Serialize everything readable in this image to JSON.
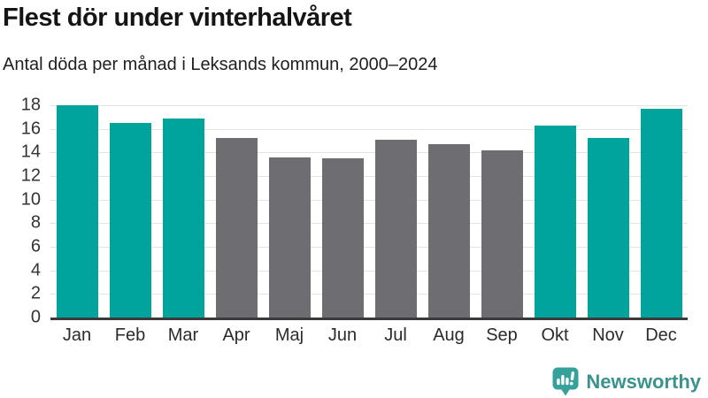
{
  "header": {
    "title": "Flest dör under vinterhalvåret",
    "subtitle": "Antal döda per månad i Leksands kommun, 2000–2024"
  },
  "chart_data": {
    "type": "bar",
    "title": "Flest dör under vinterhalvåret",
    "subtitle": "Antal döda per månad i Leksands kommun, 2000–2024",
    "categories": [
      "Jan",
      "Feb",
      "Mar",
      "Apr",
      "Maj",
      "Jun",
      "Jul",
      "Aug",
      "Sep",
      "Okt",
      "Nov",
      "Dec"
    ],
    "values": [
      18.0,
      16.5,
      16.9,
      15.2,
      13.6,
      13.5,
      15.1,
      14.7,
      14.2,
      16.3,
      15.2,
      17.7
    ],
    "highlighted": [
      true,
      true,
      true,
      false,
      false,
      false,
      false,
      false,
      false,
      true,
      true,
      true
    ],
    "xlabel": "",
    "ylabel": "",
    "ylim": [
      0,
      18
    ],
    "ytick_step": 2,
    "grid": "horizontal",
    "legend": "none",
    "colors": {
      "highlight": "#00a49c",
      "base": "#6e6e72",
      "axis": "#3a3a3a",
      "gridline": "#e3e3e3"
    }
  },
  "footer": {
    "brand": "Newsworthy",
    "logo_icon": "newsworthy-chart-bubble",
    "brand_color": "#3a938c",
    "icon_color": "#35a19a"
  }
}
